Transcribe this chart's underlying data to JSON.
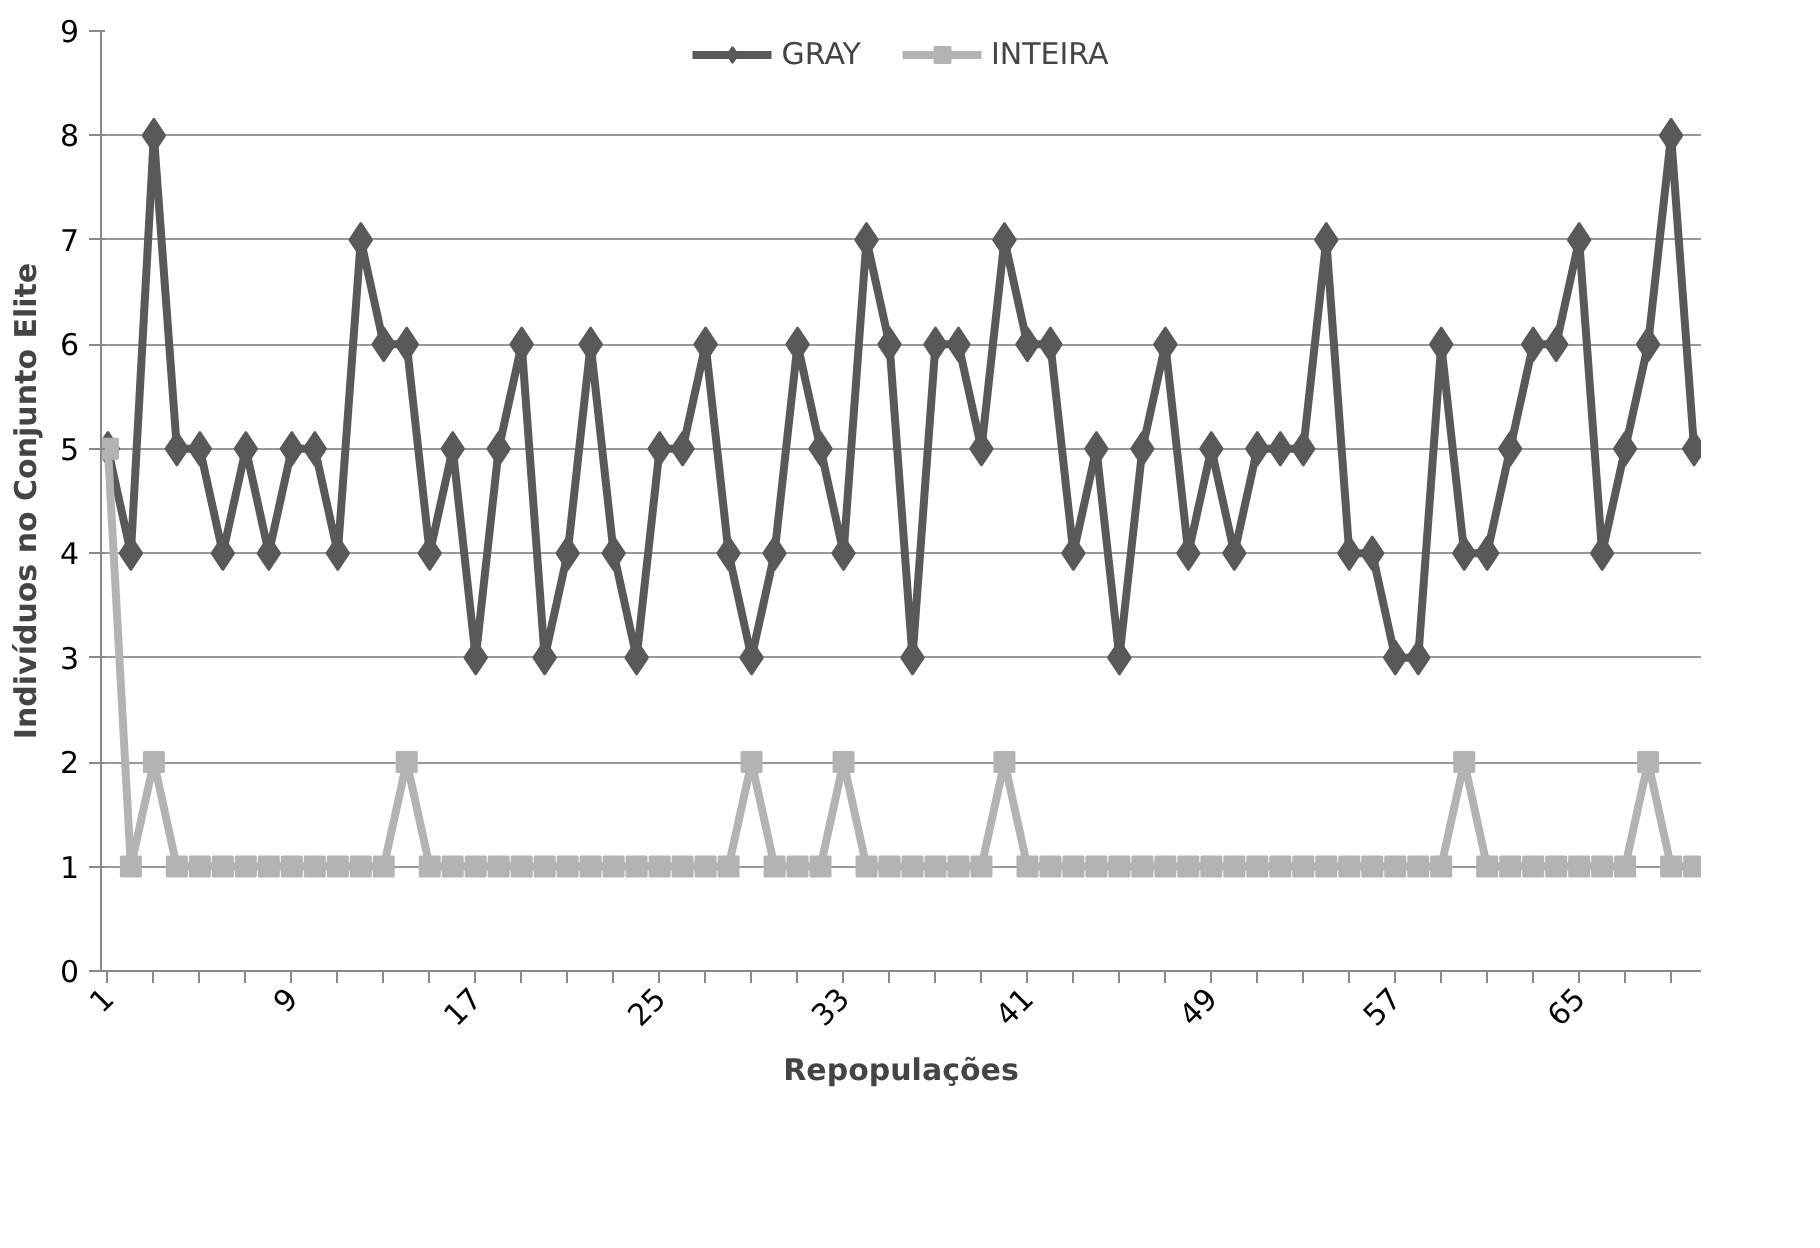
{
  "chart_data": {
    "type": "line",
    "xlabel": "Repopulações",
    "ylabel": "Indivíduos no Conjunto Elite",
    "categories": [
      "1",
      null,
      null,
      null,
      null,
      null,
      null,
      null,
      "9",
      null,
      null,
      null,
      null,
      null,
      null,
      null,
      "17",
      null,
      null,
      null,
      null,
      null,
      null,
      null,
      "25",
      null,
      null,
      null,
      null,
      null,
      null,
      null,
      "33",
      null,
      null,
      null,
      null,
      null,
      null,
      null,
      "41",
      null,
      null,
      null,
      null,
      null,
      null,
      null,
      "49",
      null,
      null,
      null,
      null,
      null,
      null,
      null,
      "57",
      null,
      null,
      null,
      null,
      null,
      null,
      null,
      "65",
      null,
      null,
      null,
      null,
      null
    ],
    "series": [
      {
        "name": "GRAY",
        "color": "#595959",
        "marker": "diamond",
        "values": [
          5,
          4,
          8,
          5,
          5,
          4,
          5,
          4,
          5,
          5,
          4,
          7,
          6,
          6,
          4,
          5,
          3,
          5,
          6,
          3,
          4,
          6,
          4,
          3,
          5,
          5,
          6,
          4,
          3,
          4,
          6,
          5,
          4,
          7,
          6,
          3,
          6,
          6,
          5,
          7,
          6,
          6,
          4,
          5,
          3,
          5,
          6,
          4,
          5,
          4,
          5,
          5,
          5,
          7,
          4,
          4,
          3,
          3,
          6,
          4,
          4,
          5,
          6,
          6,
          7,
          4,
          5,
          6,
          8,
          5
        ]
      },
      {
        "name": "INTEIRA",
        "color": "#b3b3b3",
        "marker": "square",
        "values": [
          5,
          1,
          2,
          1,
          1,
          1,
          1,
          1,
          1,
          1,
          1,
          1,
          1,
          2,
          1,
          1,
          1,
          1,
          1,
          1,
          1,
          1,
          1,
          1,
          1,
          1,
          1,
          1,
          2,
          1,
          1,
          1,
          2,
          1,
          1,
          1,
          1,
          1,
          1,
          2,
          1,
          1,
          1,
          1,
          1,
          1,
          1,
          1,
          1,
          1,
          1,
          1,
          1,
          1,
          1,
          1,
          1,
          1,
          1,
          2,
          1,
          1,
          1,
          1,
          1,
          1,
          1,
          2,
          1,
          1
        ]
      }
    ],
    "ylim": [
      0,
      9
    ],
    "yticks": [
      0,
      1,
      2,
      3,
      4,
      5,
      6,
      7,
      8,
      9
    ],
    "grid": "y",
    "legend": "top",
    "line_style": "solid"
  }
}
